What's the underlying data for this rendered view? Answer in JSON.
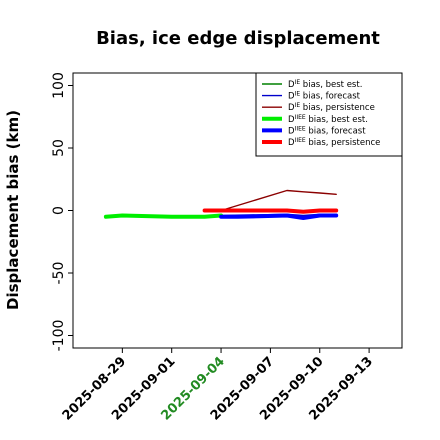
{
  "chart_data": {
    "type": "line",
    "title": "Bias, ice edge displacement",
    "xlabel": "",
    "ylabel": "Displacement bias (km)",
    "ylim": [
      -110,
      110
    ],
    "yticks": [
      -100,
      -50,
      0,
      50,
      100
    ],
    "xlim": [
      "2025-08-26",
      "2025-09-15"
    ],
    "xticks": [
      "2025-08-29",
      "2025-09-01",
      "2025-09-04",
      "2025-09-07",
      "2025-09-10",
      "2025-09-13"
    ],
    "highlighted_xtick": "2025-09-04",
    "highlight_color": "#228b22",
    "grid": false,
    "legend_position": "upper right",
    "series": [
      {
        "name": "D$^{IE}$ bias, best est.",
        "legend": {
          "base": "D",
          "sup": "IE",
          "rest": " bias, best est."
        },
        "color": "#008000",
        "width": "thin",
        "x": [],
        "y": []
      },
      {
        "name": "D$^{IE}$ bias, forecast",
        "legend": {
          "base": "D",
          "sup": "IE",
          "rest": " bias, forecast"
        },
        "color": "#0000cc",
        "width": "thin",
        "x": [
          "2025-09-04",
          "2025-09-08",
          "2025-09-09",
          "2025-09-10",
          "2025-09-11"
        ],
        "y": [
          -4,
          -3,
          -4,
          -3,
          -3
        ]
      },
      {
        "name": "D$^{IE}$ bias, persistence",
        "legend": {
          "base": "D",
          "sup": "IE",
          "rest": " bias, persistence"
        },
        "color": "#8b0000",
        "width": "thin",
        "x": [
          "2025-09-04",
          "2025-09-08",
          "2025-09-09",
          "2025-09-10",
          "2025-09-11"
        ],
        "y": [
          0,
          16,
          15,
          14,
          13
        ]
      },
      {
        "name": "D$^{IIEE}$ bias, best est.",
        "legend": {
          "base": "D",
          "sup": "IIEE",
          "rest": " bias, best est."
        },
        "color": "#00ee00",
        "width": "thick",
        "x": [
          "2025-08-28",
          "2025-08-29",
          "2025-09-01",
          "2025-09-02",
          "2025-09-03",
          "2025-09-04"
        ],
        "y": [
          -5,
          -4,
          -5,
          -5,
          -5,
          -4
        ]
      },
      {
        "name": "D$^{IIEE}$ bias, forecast",
        "legend": {
          "base": "D",
          "sup": "IIEE",
          "rest": " bias, forecast"
        },
        "color": "#0000ff",
        "width": "thick",
        "x": [
          "2025-09-04",
          "2025-09-05",
          "2025-09-08",
          "2025-09-09",
          "2025-09-10",
          "2025-09-11"
        ],
        "y": [
          -5,
          -5,
          -4,
          -6,
          -4,
          -4
        ]
      },
      {
        "name": "D$^{IIEE}$ bias, persistence",
        "legend": {
          "base": "D",
          "sup": "IIEE",
          "rest": " bias, persistence"
        },
        "color": "#ff0000",
        "width": "thick",
        "x": [
          "2025-09-03",
          "2025-09-04",
          "2025-09-05",
          "2025-09-08",
          "2025-09-09",
          "2025-09-10",
          "2025-09-11"
        ],
        "y": [
          0,
          0,
          0,
          0,
          -1,
          0,
          0
        ]
      }
    ]
  }
}
